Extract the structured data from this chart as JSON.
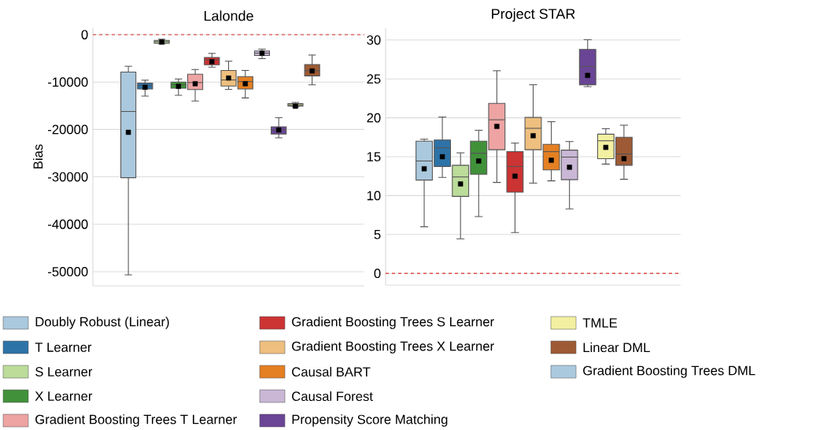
{
  "chart_data": [
    {
      "type": "box",
      "title": "Lalonde",
      "ylabel": "Bias",
      "categories": [
        null
      ],
      "ylim": [
        -53000,
        1500
      ],
      "yticks": [
        -50000,
        -40000,
        -30000,
        -20000,
        -10000,
        0
      ],
      "grid": "y",
      "legend": "bottom",
      "ref_lines": [
        {
          "axis": "y",
          "value": 0,
          "color": "#e03030",
          "line_style": "dashed"
        }
      ],
      "series": [
        {
          "name": "Doubly Robust (Linear)",
          "color": "#abc9de",
          "boxes": [
            {
              "low": -50670,
              "q1": -30170,
              "median": -16200,
              "q3": -7900,
              "high": -6670,
              "mean": -20600
            }
          ]
        },
        {
          "name": "T Learner",
          "color": "#2d73a8",
          "boxes": [
            {
              "low": -12950,
              "q1": -11450,
              "median": -10700,
              "q3": -10200,
              "high": -9600,
              "mean": -11100
            }
          ]
        },
        {
          "name": "S Learner",
          "color": "#bcdc9a",
          "boxes": [
            {
              "low": -1950,
              "q1": -1800,
              "median": -1450,
              "q3": -1200,
              "high": -950,
              "mean": -1550
            }
          ]
        },
        {
          "name": "X Learner",
          "color": "#41913a",
          "boxes": [
            {
              "low": -12800,
              "q1": -11300,
              "median": -10550,
              "q3": -10000,
              "high": -9350,
              "mean": -10900
            }
          ]
        },
        {
          "name": "Gradient Boosting Trees T Learner",
          "color": "#eda4a3",
          "boxes": [
            {
              "low": -14000,
              "q1": -11600,
              "median": -10100,
              "q3": -8350,
              "high": -7350,
              "mean": -10350
            }
          ]
        },
        {
          "name": "Gradient Boosting Trees S Learner",
          "color": "#cc3333",
          "boxes": [
            {
              "low": -6850,
              "q1": -6350,
              "median": -5300,
              "q3": -4800,
              "high": -3950,
              "mean": -5700
            }
          ]
        },
        {
          "name": "Gradient Boosting Trees X Learner",
          "color": "#eebf7f",
          "boxes": [
            {
              "low": -11550,
              "q1": -10850,
              "median": -9550,
              "q3": -7550,
              "high": -5600,
              "mean": -9150
            }
          ]
        },
        {
          "name": "Causal BART",
          "color": "#e47f22",
          "boxes": [
            {
              "low": -13350,
              "q1": -11450,
              "median": -9900,
              "q3": -8850,
              "high": -7550,
              "mean": -10350
            }
          ]
        },
        {
          "name": "Causal Forest",
          "color": "#cab7d6",
          "boxes": [
            {
              "low": -5050,
              "q1": -4400,
              "median": -3900,
              "q3": -3450,
              "high": -3050,
              "mean": -3900
            }
          ]
        },
        {
          "name": "Propensity Score Matching",
          "color": "#6a4595",
          "boxes": [
            {
              "low": -21750,
              "q1": -20950,
              "median": -20100,
              "q3": -19450,
              "high": -17500,
              "mean": -20100
            }
          ]
        },
        {
          "name": "TMLE",
          "color": "#f3f0a2",
          "boxes": [
            {
              "low": -15250,
              "q1": -15050,
              "median": -14800,
              "q3": -14550,
              "high": -14300,
              "mean": -15100
            }
          ]
        },
        {
          "name": "Linear DML",
          "color": "#9e5a35",
          "boxes": [
            {
              "low": -10600,
              "q1": -8700,
              "median": -7600,
              "q3": -6300,
              "high": -4300,
              "mean": -7650
            }
          ]
        },
        {
          "name": "Gradient Boosting Trees DML",
          "color": "#abc9de",
          "boxes": [
            null
          ]
        }
      ]
    },
    {
      "type": "box",
      "title": "Project STAR",
      "categories": [
        null
      ],
      "ylim": [
        -1.5,
        31.5
      ],
      "yticks": [
        0,
        5,
        10,
        15,
        20,
        25,
        30
      ],
      "grid": "y",
      "ref_lines": [
        {
          "axis": "y",
          "value": 0,
          "color": "#e03030",
          "line_style": "dashed"
        }
      ],
      "series": [
        {
          "color": "#abc9de",
          "boxes": [
            {
              "low": 6.0,
              "q1": 12.0,
              "median": 14.45,
              "q3": 17.0,
              "high": 17.25,
              "mean": 13.45
            }
          ]
        },
        {
          "color": "#2d73a8",
          "boxes": [
            {
              "low": 12.35,
              "q1": 13.75,
              "median": 16.15,
              "q3": 17.15,
              "high": 20.1,
              "mean": 15.0
            }
          ]
        },
        {
          "color": "#bcdc9a",
          "boxes": [
            {
              "low": 4.45,
              "q1": 9.9,
              "median": 12.4,
              "q3": 13.9,
              "high": 15.5,
              "mean": 11.5
            }
          ]
        },
        {
          "color": "#41913a",
          "boxes": [
            {
              "low": 7.3,
              "q1": 12.75,
              "median": 15.45,
              "q3": 17.0,
              "high": 18.4,
              "mean": 14.45
            }
          ]
        },
        {
          "color": "#eda4a3",
          "boxes": [
            {
              "low": 11.7,
              "q1": 15.9,
              "median": 19.75,
              "q3": 21.85,
              "high": 26.05,
              "mean": 18.9
            }
          ]
        },
        {
          "color": "#cc3333",
          "boxes": [
            {
              "low": 5.25,
              "q1": 10.45,
              "median": 13.75,
              "q3": 15.65,
              "high": 16.75,
              "mean": 12.5
            }
          ]
        },
        {
          "color": "#eebf7f",
          "boxes": [
            {
              "low": 11.6,
              "q1": 15.9,
              "median": 18.65,
              "q3": 20.05,
              "high": 24.25,
              "mean": 17.7
            }
          ]
        },
        {
          "color": "#e47f22",
          "boxes": [
            {
              "low": 11.9,
              "q1": 13.3,
              "median": 15.65,
              "q3": 16.6,
              "high": 19.5,
              "mean": 14.55
            }
          ]
        },
        {
          "color": "#cab7d6",
          "boxes": [
            {
              "low": 8.3,
              "q1": 12.05,
              "median": 14.95,
              "q3": 15.85,
              "high": 16.95,
              "mean": 13.65
            }
          ]
        },
        {
          "color": "#6a4595",
          "boxes": [
            {
              "low": 24.0,
              "q1": 24.25,
              "median": 26.6,
              "q3": 28.8,
              "high": 30.05,
              "mean": 25.45
            }
          ]
        },
        {
          "color": "#f3f0a2",
          "boxes": [
            {
              "low": 14.05,
              "q1": 14.75,
              "median": 17.05,
              "q3": 17.9,
              "high": 18.6,
              "mean": 16.2
            }
          ]
        },
        {
          "color": "#9e5a35",
          "boxes": [
            {
              "low": 12.1,
              "q1": 13.9,
              "median": 15.35,
              "q3": 17.5,
              "high": 19.05,
              "mean": 14.75
            }
          ]
        },
        {
          "color": "#abc9de",
          "boxes": [
            null
          ]
        }
      ]
    }
  ]
}
